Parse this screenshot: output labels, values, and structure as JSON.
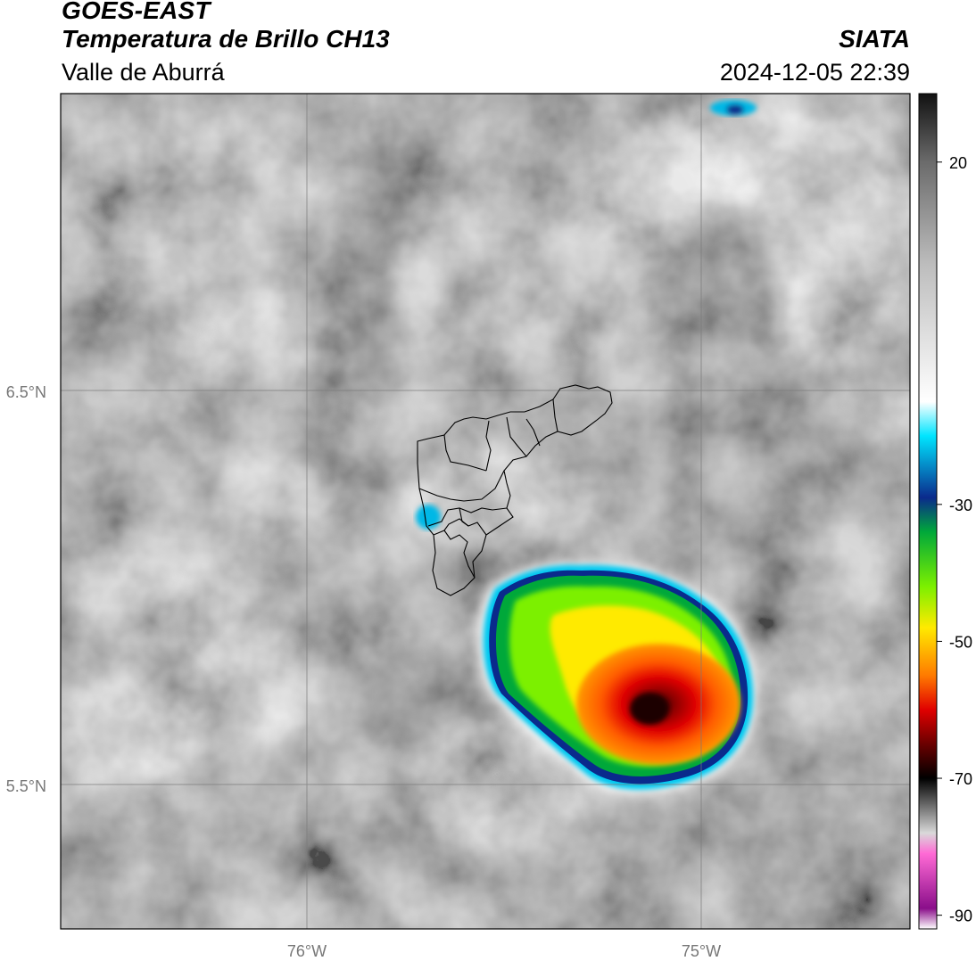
{
  "header": {
    "satellite": "GOES-EAST",
    "product": "Temperatura de Brillo CH13",
    "organization": "SIATA",
    "region": "Valle de Aburrá",
    "datetime": "2024-12-05 22:39"
  },
  "map": {
    "lat_labels": [
      "6.5°N",
      "5.5°N"
    ],
    "lon_labels": [
      "76°W",
      "75°W"
    ]
  },
  "colorbar": {
    "tick_labels": [
      "20",
      "-30",
      "-50",
      "-70",
      "-90"
    ],
    "tick_values": [
      20,
      -30,
      -50,
      -70,
      -90
    ],
    "range": [
      -92,
      30
    ],
    "stops": [
      {
        "value": 30,
        "color": "#111111"
      },
      {
        "value": 20,
        "color": "#6b6b6b"
      },
      {
        "value": 5,
        "color": "#bdbdbd"
      },
      {
        "value": -15,
        "color": "#ffffff"
      },
      {
        "value": -20,
        "color": "#00e5ff"
      },
      {
        "value": -29,
        "color": "#0a2a8c"
      },
      {
        "value": -34,
        "color": "#00a83a"
      },
      {
        "value": -42,
        "color": "#7cf000"
      },
      {
        "value": -48,
        "color": "#ffea00"
      },
      {
        "value": -55,
        "color": "#ff7a00"
      },
      {
        "value": -60,
        "color": "#e00000"
      },
      {
        "value": -65,
        "color": "#6a0000"
      },
      {
        "value": -70,
        "color": "#000000"
      },
      {
        "value": -78,
        "color": "#d9d9d9"
      },
      {
        "value": -81,
        "color": "#ff6ad5"
      },
      {
        "value": -89,
        "color": "#8a0e8a"
      },
      {
        "value": -92,
        "color": "#ffffff"
      }
    ]
  }
}
